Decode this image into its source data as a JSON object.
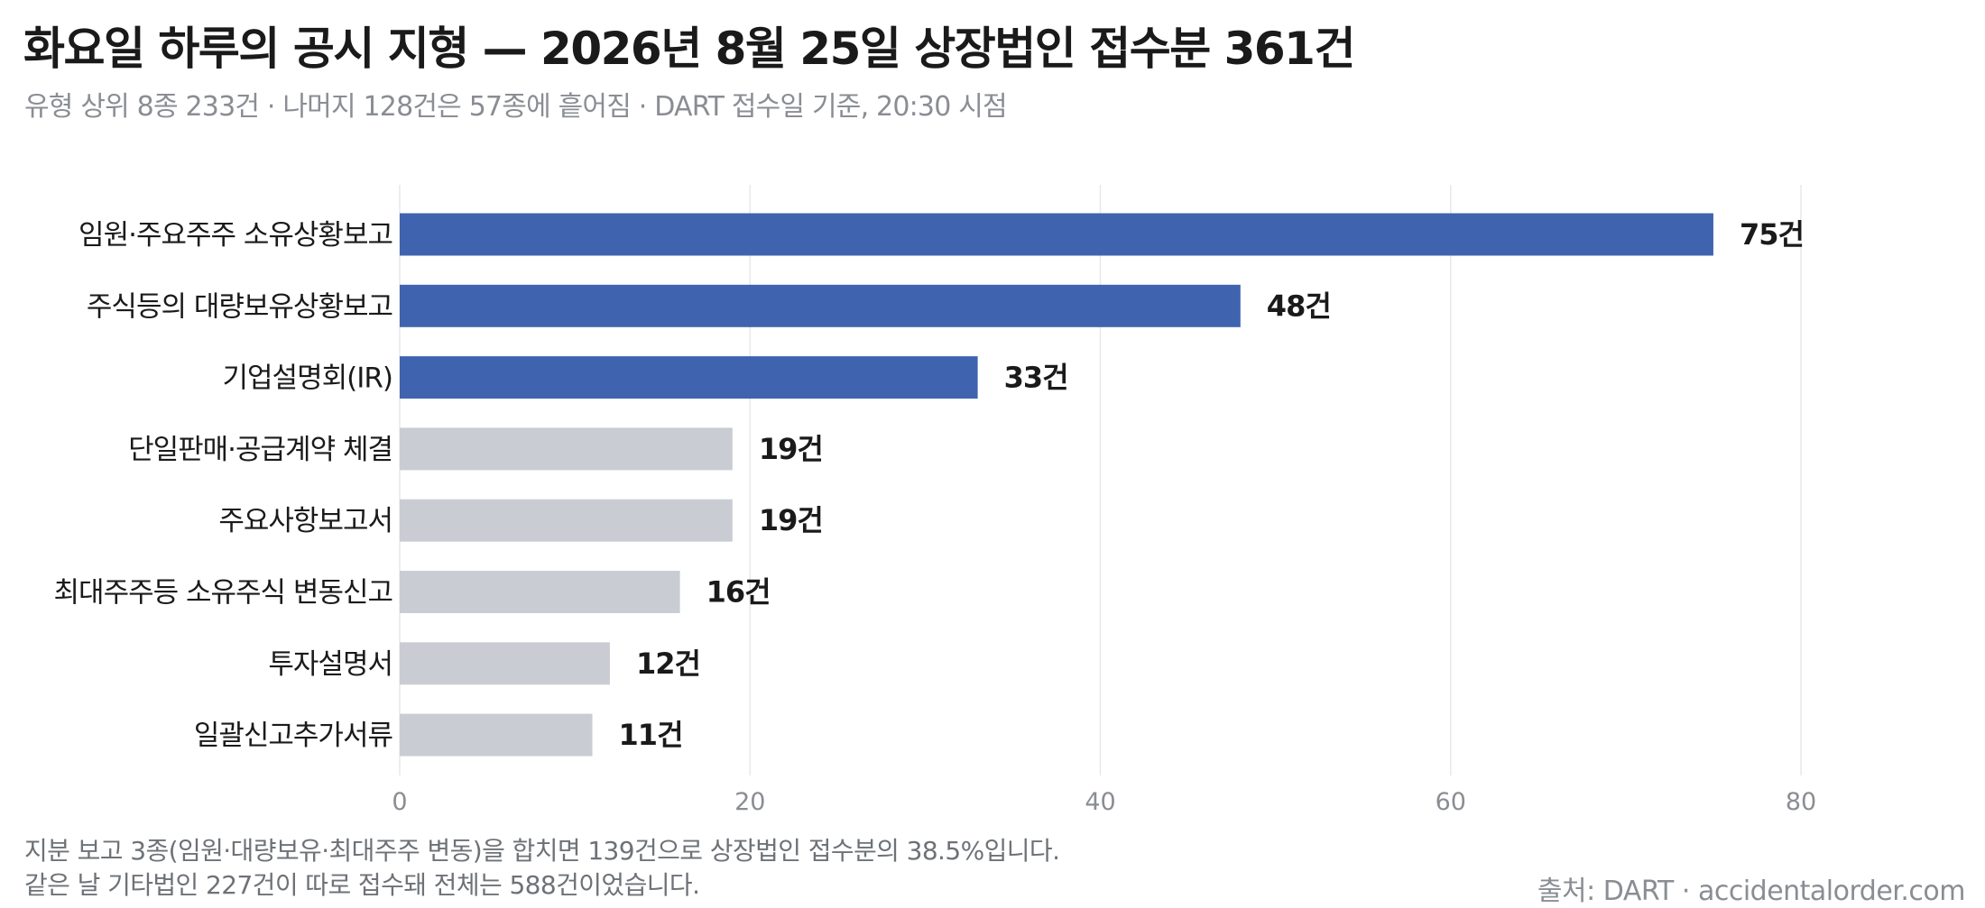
{
  "header": {
    "title": "화요일 하루의 공시 지형 — 2026년 8월 25일 상장법인 접수분 361건",
    "subtitle": "유형 상위 8종 233건 · 나머지 128건은 57종에 흩어짐 · DART 접수일 기준, 20:30 시점"
  },
  "chart_data": {
    "type": "bar",
    "orientation": "horizontal",
    "categories": [
      "임원·주요주주 소유상황보고",
      "주식등의 대량보유상황보고",
      "기업설명회(IR)",
      "단일판매·공급계약 체결",
      "주요사항보고서",
      "최대주주등 소유주식 변동신고",
      "투자설명서",
      "일괄신고추가서류"
    ],
    "values": [
      75,
      48,
      33,
      19,
      19,
      16,
      12,
      11
    ],
    "value_labels": [
      "75건",
      "48건",
      "33건",
      "19건",
      "19건",
      "16건",
      "12건",
      "11건"
    ],
    "highlighted": [
      true,
      true,
      true,
      false,
      false,
      false,
      false,
      false
    ],
    "x_ticks": [
      "0",
      "20",
      "40",
      "60",
      "80"
    ],
    "xlim": [
      0,
      80
    ],
    "grid": "vertical",
    "colors": {
      "highlight": "#3f63ae",
      "muted": "#c9cdd3",
      "grid": "#e6e8eb",
      "tick": "#8a8d93"
    }
  },
  "footer": {
    "note_line1": "지분 보고 3종(임원·대량보유·최대주주 변동)을 합치면 139건으로 상장법인 접수분의 38.5%입니다.",
    "note_line2": "같은 날 기타법인 227건이 따로 접수돼 전체는 588건이었습니다.",
    "source": "출처: DART · accidentalorder.com"
  }
}
